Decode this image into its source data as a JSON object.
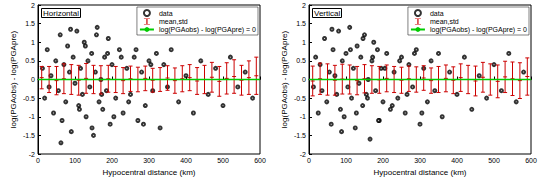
{
  "chart_data": [
    {
      "type": "scatter",
      "title": "Horizontal",
      "xlabel": "Hypocentral distance (km)",
      "ylabel": "log(PGAobs) - log(PGApre)",
      "xlim": [
        0,
        600
      ],
      "xticks": [
        0,
        100,
        200,
        300,
        400,
        500,
        600
      ],
      "ylim": [
        -2,
        2
      ],
      "yticks": [
        -2,
        -1.5,
        -1,
        -0.5,
        0,
        0.5,
        1,
        1.5,
        2
      ],
      "grid": false,
      "legend": "upper right",
      "series": [
        {
          "name": "data",
          "type": "scatter",
          "marker": "circle-open",
          "color": "#000000",
          "x": [
            12,
            18,
            25,
            30,
            35,
            42,
            48,
            55,
            60,
            65,
            70,
            75,
            80,
            85,
            90,
            95,
            100,
            105,
            110,
            115,
            120,
            125,
            130,
            135,
            140,
            145,
            150,
            155,
            160,
            165,
            170,
            175,
            180,
            185,
            190,
            195,
            200,
            210,
            220,
            230,
            240,
            250,
            260,
            270,
            280,
            290,
            300,
            310,
            320,
            330,
            340,
            350,
            360,
            380,
            400,
            420,
            440,
            460,
            480,
            500,
            520,
            540,
            560,
            580,
            62,
            88,
            112,
            128,
            146,
            158,
            172,
            188,
            205,
            225,
            245,
            265,
            285,
            305
          ],
          "values": [
            0.3,
            -0.5,
            0.8,
            -0.2,
            0.1,
            -0.9,
            0.5,
            -0.3,
            1.2,
            -1.1,
            0.4,
            -0.6,
            0.9,
            0.2,
            -1.4,
            0.6,
            -0.1,
            1.3,
            -0.7,
            0.3,
            -0.4,
            1.0,
            -1.0,
            0.5,
            -0.2,
            0.7,
            -1.5,
            0.2,
            1.4,
            -0.6,
            0.0,
            -0.8,
            0.6,
            -0.3,
            1.1,
            -1.2,
            0.4,
            -0.5,
            0.8,
            -0.9,
            0.3,
            -0.4,
            0.6,
            -1.1,
            0.2,
            -0.7,
            0.5,
            -0.3,
            0.7,
            -1.3,
            0.4,
            -0.2,
            0.8,
            -0.6,
            0.1,
            -0.9,
            0.5,
            -0.4,
            0.3,
            -0.7,
            0.6,
            -0.2,
            0.2,
            -0.5,
            -1.7,
            1.35,
            -0.8,
            0.9,
            -1.3,
            1.2,
            -0.4,
            0.7,
            -1.0,
            0.6,
            -0.6,
            0.8,
            -1.2,
            0.4
          ]
        },
        {
          "name": "mean,std",
          "type": "errorbar",
          "color": "#cc0000",
          "x": [
            10,
            30,
            50,
            70,
            90,
            110,
            130,
            150,
            170,
            190,
            210,
            230,
            250,
            270,
            290,
            310,
            330,
            350,
            370,
            390,
            410,
            430,
            450,
            470,
            490,
            510,
            530,
            550,
            570,
            590
          ],
          "values": [
            0.05,
            0.0,
            -0.03,
            0.02,
            0.0,
            -0.02,
            0.03,
            0.0,
            -0.01,
            0.02,
            0.0,
            -0.03,
            0.02,
            0.0,
            0.03,
            -0.02,
            0.0,
            0.04,
            -0.03,
            0.02,
            0.05,
            -0.04,
            0.0,
            0.06,
            -0.05,
            0.03,
            0.08,
            -0.02,
            0.05,
            0.1
          ],
          "errors": [
            0.3,
            0.35,
            0.38,
            0.4,
            0.4,
            0.4,
            0.4,
            0.38,
            0.38,
            0.36,
            0.35,
            0.35,
            0.34,
            0.33,
            0.33,
            0.32,
            0.32,
            0.33,
            0.34,
            0.35,
            0.35,
            0.36,
            0.38,
            0.4,
            0.4,
            0.42,
            0.45,
            0.4,
            0.45,
            0.5
          ]
        },
        {
          "name": "log(PGAobs) - log(PGApre) = 0",
          "type": "line",
          "color": "#00cc00",
          "x": [
            0,
            600
          ],
          "values": [
            0,
            0
          ]
        }
      ]
    },
    {
      "type": "scatter",
      "title": "Vertical",
      "xlabel": "Hypocentral distance (km)",
      "ylabel": "log(PGAobs) - log(PGApre)",
      "xlim": [
        0,
        600
      ],
      "xticks": [
        0,
        100,
        200,
        300,
        400,
        500,
        600
      ],
      "ylim": [
        -2,
        2
      ],
      "yticks": [
        -2,
        -1.5,
        -1,
        -0.5,
        0,
        0.5,
        1,
        1.5,
        2
      ],
      "grid": false,
      "legend": "upper right",
      "series": [
        {
          "name": "data",
          "type": "scatter",
          "marker": "circle-open",
          "color": "#000000",
          "x": [
            12,
            18,
            25,
            30,
            35,
            42,
            48,
            55,
            60,
            65,
            70,
            75,
            80,
            85,
            90,
            95,
            100,
            105,
            110,
            115,
            120,
            125,
            130,
            135,
            140,
            145,
            150,
            155,
            160,
            165,
            170,
            175,
            180,
            185,
            190,
            195,
            200,
            210,
            220,
            230,
            240,
            250,
            260,
            270,
            280,
            290,
            300,
            310,
            320,
            330,
            340,
            350,
            360,
            380,
            400,
            420,
            440,
            460,
            480,
            500,
            520,
            540,
            560,
            580,
            62,
            88,
            112,
            128,
            146,
            158,
            172,
            188,
            205,
            225,
            245,
            265,
            285,
            305
          ],
          "values": [
            -0.2,
            0.6,
            -0.9,
            0.4,
            -0.3,
            1.1,
            -0.6,
            0.2,
            -1.2,
            0.8,
            0.1,
            -0.4,
            1.3,
            -0.8,
            0.5,
            -1.0,
            0.7,
            -0.2,
            1.4,
            -0.5,
            0.3,
            -1.3,
            0.9,
            -0.1,
            0.6,
            -0.7,
            1.2,
            -0.4,
            0.0,
            -1.6,
            0.5,
            1.0,
            -0.3,
            0.8,
            -1.1,
            0.3,
            -0.6,
            0.7,
            -0.8,
            0.2,
            -0.5,
            0.6,
            -0.9,
            0.4,
            -0.2,
            0.8,
            -1.2,
            0.3,
            -0.6,
            0.5,
            -0.3,
            0.7,
            -1.0,
            0.2,
            -0.4,
            0.6,
            -0.8,
            0.1,
            -0.5,
            0.4,
            -0.3,
            0.7,
            -0.6,
            0.2,
            1.35,
            -1.4,
            0.8,
            -0.9,
            1.1,
            -0.5,
            0.6,
            -1.1,
            0.3,
            -0.7,
            0.5,
            -0.4,
            0.7,
            -0.9
          ]
        },
        {
          "name": "mean,std",
          "type": "errorbar",
          "color": "#cc0000",
          "x": [
            10,
            30,
            50,
            70,
            90,
            110,
            130,
            150,
            170,
            190,
            210,
            230,
            250,
            270,
            290,
            310,
            330,
            350,
            370,
            390,
            410,
            430,
            450,
            470,
            490,
            510,
            530,
            550,
            570,
            590
          ],
          "values": [
            -0.04,
            0.02,
            0.0,
            -0.02,
            0.01,
            0.0,
            -0.03,
            0.02,
            0.0,
            -0.01,
            0.03,
            0.0,
            -0.02,
            0.02,
            0.0,
            0.04,
            -0.03,
            0.0,
            0.03,
            -0.02,
            0.05,
            0.0,
            -0.04,
            0.06,
            0.0,
            -0.05,
            0.07,
            0.02,
            -0.03,
            0.08
          ],
          "errors": [
            0.4,
            0.42,
            0.42,
            0.4,
            0.4,
            0.39,
            0.38,
            0.38,
            0.37,
            0.36,
            0.36,
            0.35,
            0.35,
            0.34,
            0.34,
            0.33,
            0.34,
            0.35,
            0.36,
            0.36,
            0.37,
            0.38,
            0.4,
            0.4,
            0.42,
            0.44,
            0.42,
            0.45,
            0.48,
            0.5
          ]
        },
        {
          "name": "log(PGAobs) - log(PGApre) = 0",
          "type": "line",
          "color": "#00cc00",
          "x": [
            0,
            600
          ],
          "values": [
            0,
            0
          ]
        }
      ]
    }
  ]
}
